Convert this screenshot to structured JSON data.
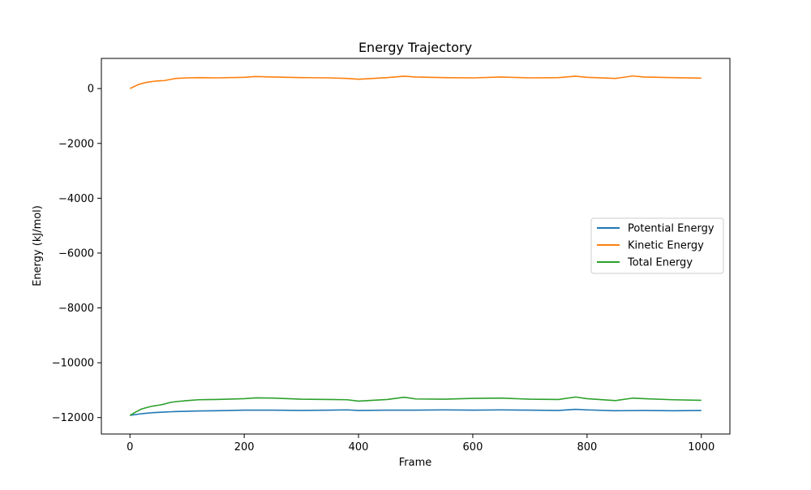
{
  "chart_data": {
    "type": "line",
    "title": "Energy Trajectory",
    "xlabel": "Frame",
    "ylabel": "Energy (kJ/mol)",
    "xlim": [
      -50,
      1050
    ],
    "ylim": [
      -12600,
      1100
    ],
    "xticks": [
      0,
      200,
      400,
      600,
      800,
      1000
    ],
    "yticks": [
      0,
      -2000,
      -4000,
      -6000,
      -8000,
      -10000,
      -12000
    ],
    "xtick_labels": [
      "0",
      "200",
      "400",
      "600",
      "800",
      "1000"
    ],
    "ytick_labels": [
      "0",
      "−2000",
      "−4000",
      "−6000",
      "−8000",
      "−10000",
      "−12000"
    ],
    "grid": false,
    "legend_position": "center-right",
    "series": [
      {
        "name": "Potential Energy",
        "color": "#1f77b4",
        "x": [
          0,
          10,
          20,
          30,
          40,
          50,
          60,
          70,
          80,
          100,
          120,
          150,
          200,
          250,
          300,
          350,
          380,
          400,
          450,
          500,
          550,
          600,
          650,
          700,
          750,
          780,
          800,
          850,
          900,
          950,
          1000
        ],
        "values": [
          -11920,
          -11890,
          -11860,
          -11840,
          -11820,
          -11810,
          -11800,
          -11790,
          -11780,
          -11770,
          -11760,
          -11750,
          -11730,
          -11730,
          -11740,
          -11730,
          -11720,
          -11740,
          -11730,
          -11730,
          -11720,
          -11730,
          -11720,
          -11730,
          -11740,
          -11700,
          -11720,
          -11750,
          -11740,
          -11750,
          -11740
        ]
      },
      {
        "name": "Kinetic Energy",
        "color": "#ff7f0e",
        "x": [
          0,
          5,
          10,
          15,
          20,
          30,
          40,
          50,
          60,
          70,
          80,
          100,
          120,
          150,
          200,
          220,
          250,
          300,
          350,
          380,
          400,
          450,
          480,
          500,
          550,
          600,
          650,
          700,
          750,
          780,
          800,
          850,
          880,
          900,
          950,
          1000
        ],
        "values": [
          0,
          50,
          100,
          150,
          180,
          230,
          260,
          280,
          290,
          330,
          370,
          390,
          400,
          390,
          410,
          440,
          420,
          400,
          390,
          370,
          340,
          400,
          450,
          420,
          400,
          390,
          420,
          390,
          400,
          450,
          410,
          370,
          460,
          420,
          400,
          380
        ]
      },
      {
        "name": "Total Energy",
        "color": "#2ca02c",
        "x": [
          0,
          10,
          20,
          30,
          40,
          50,
          60,
          70,
          80,
          100,
          120,
          150,
          200,
          220,
          250,
          300,
          350,
          380,
          400,
          450,
          480,
          500,
          550,
          600,
          650,
          700,
          750,
          780,
          800,
          850,
          880,
          900,
          950,
          1000
        ],
        "values": [
          -11920,
          -11800,
          -11690,
          -11630,
          -11580,
          -11550,
          -11510,
          -11450,
          -11420,
          -11380,
          -11350,
          -11340,
          -11310,
          -11280,
          -11290,
          -11330,
          -11340,
          -11350,
          -11400,
          -11340,
          -11260,
          -11320,
          -11330,
          -11300,
          -11290,
          -11330,
          -11340,
          -11250,
          -11310,
          -11380,
          -11290,
          -11310,
          -11350,
          -11370
        ]
      }
    ]
  }
}
